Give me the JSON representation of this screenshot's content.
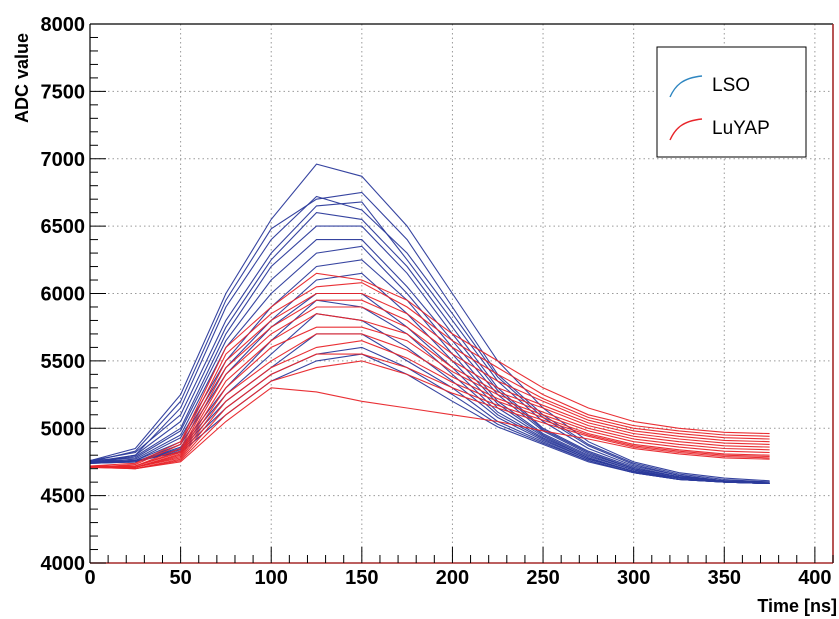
{
  "chart_data": {
    "type": "line",
    "xlabel": "Time [ns]",
    "ylabel": "ADC value",
    "xlim": [
      0,
      410
    ],
    "ylim": [
      4000,
      8000
    ],
    "x_ticks": [
      0,
      50,
      100,
      150,
      200,
      250,
      300,
      350,
      400
    ],
    "y_ticks": [
      4000,
      4500,
      5000,
      5500,
      6000,
      6500,
      7000,
      7500,
      8000
    ],
    "grid": true,
    "legend_position": "top-right",
    "x": [
      0,
      25,
      50,
      75,
      100,
      125,
      150,
      175,
      200,
      225,
      250,
      275,
      300,
      325,
      350,
      375
    ],
    "series": [
      {
        "name": "LSO",
        "color": "#2b3a9b",
        "legend_color": "#2e86c1",
        "curves": [
          [
            4760,
            4850,
            5250,
            6000,
            6550,
            6960,
            6870,
            6500,
            6000,
            5500,
            5150,
            4900,
            4750,
            4670,
            4630,
            4610
          ],
          [
            4750,
            4830,
            5200,
            5950,
            6480,
            6700,
            6750,
            6400,
            5900,
            5400,
            5100,
            4880,
            4740,
            4660,
            4620,
            4600
          ],
          [
            4740,
            4800,
            5150,
            5900,
            6400,
            6720,
            6620,
            6300,
            5850,
            5380,
            5080,
            4870,
            4730,
            4650,
            4610,
            4600
          ],
          [
            4760,
            4820,
            5100,
            5800,
            6300,
            6650,
            6680,
            6250,
            5800,
            5350,
            5050,
            4850,
            4720,
            4650,
            4610,
            4600
          ],
          [
            4750,
            4800,
            5050,
            5750,
            6250,
            6600,
            6550,
            6200,
            5750,
            5300,
            5000,
            4830,
            4710,
            4640,
            4610,
            4600
          ],
          [
            4740,
            4790,
            5000,
            5700,
            6200,
            6500,
            6500,
            6150,
            5700,
            5280,
            4990,
            4820,
            4700,
            4640,
            4610,
            4600
          ],
          [
            4760,
            4780,
            4980,
            5650,
            6100,
            6400,
            6400,
            6050,
            5650,
            5250,
            4980,
            4810,
            4700,
            4640,
            4610,
            4600
          ],
          [
            4750,
            4770,
            4950,
            5600,
            6000,
            6300,
            6350,
            6000,
            5600,
            5200,
            4960,
            4800,
            4690,
            4630,
            4600,
            4590
          ],
          [
            4740,
            4760,
            4930,
            5500,
            5900,
            6200,
            6250,
            5950,
            5550,
            5180,
            4950,
            4790,
            4690,
            4630,
            4600,
            4590
          ],
          [
            4750,
            4760,
            4900,
            5450,
            5800,
            6100,
            6150,
            5850,
            5500,
            5150,
            4940,
            4780,
            4680,
            4630,
            4600,
            4590
          ],
          [
            4740,
            4750,
            4880,
            5400,
            5750,
            6000,
            6000,
            5750,
            5450,
            5120,
            4930,
            4780,
            4680,
            4630,
            4600,
            4590
          ],
          [
            4750,
            4750,
            4860,
            5300,
            5650,
            5950,
            5900,
            5700,
            5400,
            5100,
            4920,
            4770,
            4680,
            4620,
            4600,
            4590
          ],
          [
            4740,
            4750,
            4850,
            5250,
            5550,
            5850,
            5800,
            5600,
            5350,
            5080,
            4910,
            4770,
            4680,
            4620,
            4600,
            4590
          ],
          [
            4750,
            4750,
            4840,
            5200,
            5450,
            5700,
            5700,
            5500,
            5300,
            5050,
            4900,
            4760,
            4670,
            4620,
            4600,
            4590
          ],
          [
            4740,
            4750,
            4830,
            5150,
            5400,
            5550,
            5600,
            5450,
            5250,
            5030,
            4890,
            4760,
            4670,
            4620,
            4600,
            4590
          ],
          [
            4750,
            4760,
            4820,
            5100,
            5350,
            5500,
            5550,
            5400,
            5200,
            5010,
            4880,
            4750,
            4670,
            4620,
            4600,
            4590
          ]
        ]
      },
      {
        "name": "LuYAP",
        "color": "#e8252a",
        "legend_color": "#e8252a",
        "curves": [
          [
            4720,
            4740,
            4900,
            5600,
            5900,
            6150,
            6100,
            5950,
            5700,
            5500,
            5300,
            5150,
            5050,
            5000,
            4970,
            4960
          ],
          [
            4710,
            4730,
            4880,
            5550,
            5850,
            6050,
            6080,
            5900,
            5650,
            5450,
            5250,
            5100,
            5020,
            4980,
            4950,
            4940
          ],
          [
            4720,
            4720,
            4850,
            5500,
            5800,
            6000,
            6000,
            5850,
            5600,
            5400,
            5220,
            5080,
            5000,
            4960,
            4930,
            4920
          ],
          [
            4710,
            4720,
            4830,
            5450,
            5750,
            5950,
            5950,
            5800,
            5550,
            5350,
            5200,
            5060,
            4980,
            4940,
            4910,
            4900
          ],
          [
            4720,
            4720,
            4820,
            5400,
            5700,
            5900,
            5900,
            5750,
            5500,
            5300,
            5170,
            5040,
            4960,
            4920,
            4890,
            4880
          ],
          [
            4710,
            4710,
            4810,
            5350,
            5650,
            5850,
            5800,
            5700,
            5450,
            5270,
            5150,
            5020,
            4940,
            4900,
            4870,
            4860
          ],
          [
            4720,
            4710,
            4800,
            5300,
            5600,
            5750,
            5750,
            5650,
            5420,
            5250,
            5120,
            5000,
            4920,
            4880,
            4850,
            4840
          ],
          [
            4710,
            4710,
            4790,
            5250,
            5500,
            5700,
            5700,
            5580,
            5380,
            5220,
            5100,
            4980,
            4900,
            4860,
            4830,
            4820
          ],
          [
            4720,
            4710,
            4780,
            5200,
            5450,
            5600,
            5650,
            5520,
            5340,
            5200,
            5080,
            4960,
            4880,
            4840,
            4810,
            4800
          ],
          [
            4710,
            4700,
            4770,
            5150,
            5400,
            5550,
            5550,
            5450,
            5300,
            5170,
            5060,
            4950,
            4870,
            4830,
            4800,
            4790
          ],
          [
            4720,
            4700,
            4760,
            5100,
            5350,
            5450,
            5500,
            5400,
            5260,
            5150,
            5040,
            4940,
            4860,
            4820,
            4790,
            4780
          ],
          [
            4710,
            4700,
            4750,
            5050,
            5300,
            5270,
            5200,
            5150,
            5100,
            5050,
            4980,
            4920,
            4850,
            4810,
            4780,
            4770
          ]
        ]
      }
    ]
  }
}
